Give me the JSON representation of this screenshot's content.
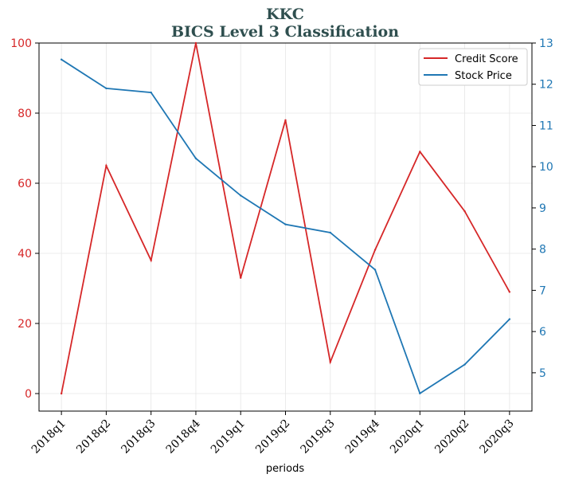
{
  "chart_data": {
    "type": "line",
    "title": "KKC",
    "subtitle": "BICS Level 3 Classification",
    "xlabel": "periods",
    "categories": [
      "2018q1",
      "2018q2",
      "2018q3",
      "2018q4",
      "2019q1",
      "2019q2",
      "2019q3",
      "2019q4",
      "2020q1",
      "2020q2",
      "2020q3"
    ],
    "series": [
      {
        "name": "Credit Score",
        "axis": "left",
        "color": "#d62728",
        "values": [
          0,
          65,
          38,
          100,
          33,
          78,
          9,
          41,
          69,
          52,
          29
        ]
      },
      {
        "name": "Stock Price",
        "axis": "right",
        "color": "#1f77b4",
        "values": [
          12.6,
          11.9,
          11.8,
          10.2,
          9.3,
          8.6,
          8.4,
          7.5,
          4.5,
          5.2,
          6.3
        ]
      }
    ],
    "y_left": {
      "lim": [
        -5,
        100
      ],
      "ticks": [
        0,
        20,
        40,
        60,
        80,
        100
      ],
      "color": "#d62728"
    },
    "y_right": {
      "lim": [
        4.07,
        13
      ],
      "ticks": [
        5,
        6,
        7,
        8,
        9,
        10,
        11,
        12,
        13
      ],
      "color": "#1f77b4"
    },
    "grid": true,
    "legend": "top-right"
  }
}
